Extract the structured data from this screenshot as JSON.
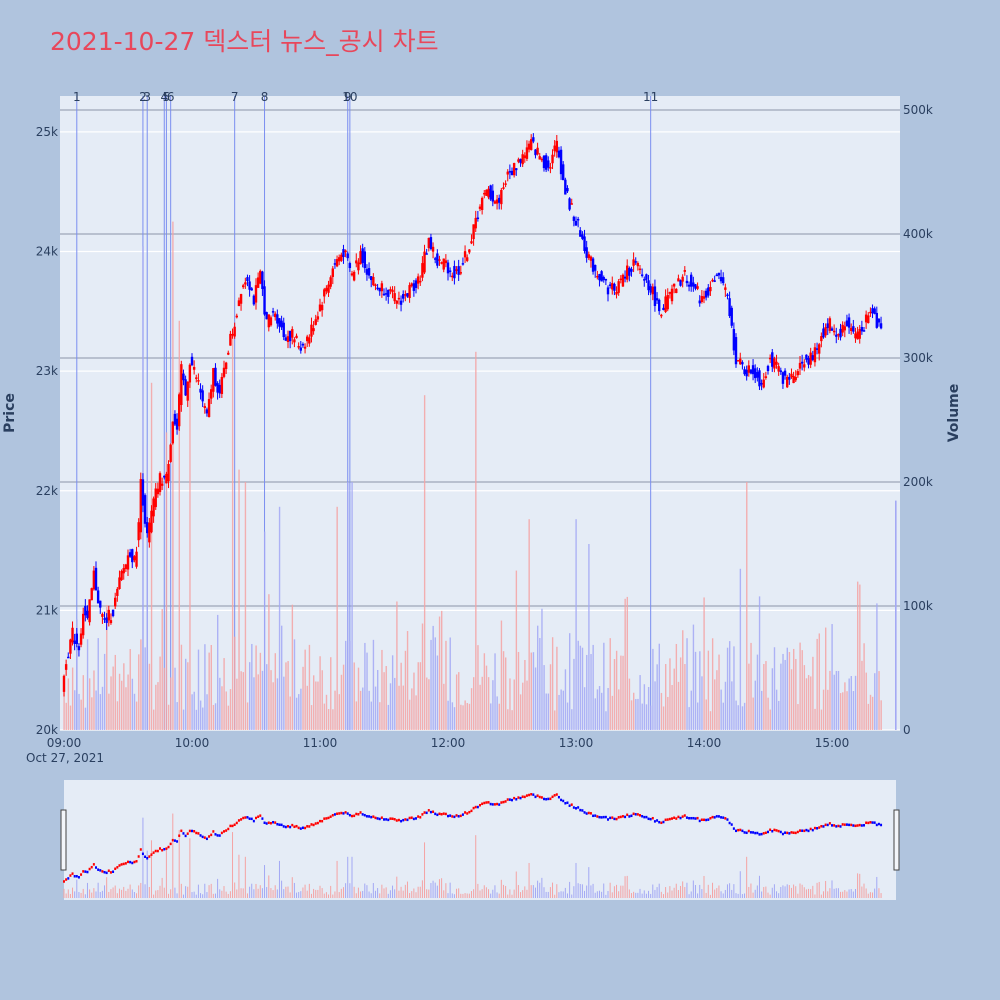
{
  "title": "2021-10-27 덱스터 뉴스_공시 차트",
  "colors": {
    "background": "#b0c4de",
    "plot": "#e5ecf6",
    "up": "#ff0000",
    "down": "#0000ff",
    "title": "#e8475b",
    "newsline": "#7b8ef0"
  },
  "chart_data": {
    "type": "candlestick",
    "date_label": "Oct 27, 2021",
    "xlabel": "",
    "ylabel": "Price",
    "y2label": "Volume",
    "x_range": [
      "09:00",
      "15:30"
    ],
    "ylim": [
      20000,
      25300
    ],
    "y2lim": [
      0,
      500000
    ],
    "x_ticks": [
      "09:00",
      "10:00",
      "11:00",
      "12:00",
      "13:00",
      "14:00",
      "15:00"
    ],
    "y_ticks": [
      20000,
      21000,
      22000,
      23000,
      24000,
      25000
    ],
    "y_tick_labels": [
      "20k",
      "21k",
      "22k",
      "23k",
      "24k",
      "25k"
    ],
    "y2_ticks": [
      0,
      100000,
      200000,
      300000,
      400000,
      500000
    ],
    "y2_tick_labels": [
      "0",
      "100k",
      "200k",
      "300k",
      "400k",
      "500k"
    ],
    "news_markers": [
      {
        "label": "1",
        "time": "09:06"
      },
      {
        "label": "2",
        "time": "09:37"
      },
      {
        "label": "3",
        "time": "09:39"
      },
      {
        "label": "4",
        "time": "09:47"
      },
      {
        "label": "5",
        "time": "09:48"
      },
      {
        "label": "6",
        "time": "09:50"
      },
      {
        "label": "7",
        "time": "10:20"
      },
      {
        "label": "8",
        "time": "10:34"
      },
      {
        "label": "9",
        "time": "11:13"
      },
      {
        "label": "10",
        "time": "11:14"
      },
      {
        "label": "11",
        "time": "13:35"
      }
    ],
    "price_path": [
      [
        "09:00",
        20300
      ],
      [
        "09:02",
        20600
      ],
      [
        "09:05",
        20800
      ],
      [
        "09:08",
        20700
      ],
      [
        "09:10",
        21000
      ],
      [
        "09:12",
        20900
      ],
      [
        "09:15",
        21300
      ],
      [
        "09:18",
        21000
      ],
      [
        "09:20",
        20900
      ],
      [
        "09:24",
        21000
      ],
      [
        "09:28",
        21300
      ],
      [
        "09:32",
        21500
      ],
      [
        "09:34",
        21400
      ],
      [
        "09:36",
        21700
      ],
      [
        "09:37",
        22100
      ],
      [
        "09:40",
        21600
      ],
      [
        "09:43",
        21900
      ],
      [
        "09:46",
        22100
      ],
      [
        "09:49",
        22100
      ],
      [
        "09:52",
        22600
      ],
      [
        "09:54",
        22500
      ],
      [
        "09:56",
        23000
      ],
      [
        "09:58",
        22800
      ],
      [
        "10:00",
        23100
      ],
      [
        "10:04",
        22900
      ],
      [
        "10:08",
        22600
      ],
      [
        "10:11",
        23000
      ],
      [
        "10:14",
        22800
      ],
      [
        "10:18",
        23200
      ],
      [
        "10:21",
        23400
      ],
      [
        "10:24",
        23700
      ],
      [
        "10:27",
        23800
      ],
      [
        "10:30",
        23600
      ],
      [
        "10:33",
        23800
      ],
      [
        "10:36",
        23400
      ],
      [
        "10:40",
        23500
      ],
      [
        "10:44",
        23300
      ],
      [
        "10:48",
        23300
      ],
      [
        "10:52",
        23200
      ],
      [
        "10:56",
        23300
      ],
      [
        "11:00",
        23500
      ],
      [
        "11:04",
        23700
      ],
      [
        "11:08",
        23900
      ],
      [
        "11:12",
        24000
      ],
      [
        "11:16",
        23800
      ],
      [
        "11:20",
        24000
      ],
      [
        "11:24",
        23800
      ],
      [
        "11:28",
        23700
      ],
      [
        "11:32",
        23700
      ],
      [
        "11:36",
        23600
      ],
      [
        "11:40",
        23600
      ],
      [
        "11:44",
        23700
      ],
      [
        "11:48",
        23800
      ],
      [
        "11:52",
        24100
      ],
      [
        "11:56",
        23900
      ],
      [
        "12:00",
        23900
      ],
      [
        "12:04",
        23800
      ],
      [
        "12:08",
        23900
      ],
      [
        "12:12",
        24100
      ],
      [
        "12:16",
        24400
      ],
      [
        "12:20",
        24500
      ],
      [
        "12:24",
        24400
      ],
      [
        "12:28",
        24600
      ],
      [
        "12:32",
        24700
      ],
      [
        "12:36",
        24800
      ],
      [
        "12:40",
        24900
      ],
      [
        "12:44",
        24800
      ],
      [
        "12:48",
        24700
      ],
      [
        "12:52",
        24900
      ],
      [
        "12:56",
        24500
      ],
      [
        "13:00",
        24300
      ],
      [
        "13:04",
        24100
      ],
      [
        "13:08",
        23900
      ],
      [
        "13:12",
        23800
      ],
      [
        "13:16",
        23700
      ],
      [
        "13:20",
        23700
      ],
      [
        "13:24",
        23800
      ],
      [
        "13:28",
        23900
      ],
      [
        "13:32",
        23800
      ],
      [
        "13:36",
        23700
      ],
      [
        "13:40",
        23500
      ],
      [
        "13:44",
        23600
      ],
      [
        "13:48",
        23700
      ],
      [
        "13:52",
        23800
      ],
      [
        "13:56",
        23700
      ],
      [
        "14:00",
        23600
      ],
      [
        "14:04",
        23700
      ],
      [
        "14:08",
        23800
      ],
      [
        "14:12",
        23600
      ],
      [
        "14:16",
        23100
      ],
      [
        "14:20",
        23000
      ],
      [
        "14:24",
        23000
      ],
      [
        "14:28",
        22900
      ],
      [
        "14:32",
        23100
      ],
      [
        "14:36",
        23000
      ],
      [
        "14:40",
        22900
      ],
      [
        "14:44",
        23000
      ],
      [
        "14:48",
        23100
      ],
      [
        "14:52",
        23100
      ],
      [
        "14:56",
        23300
      ],
      [
        "15:00",
        23400
      ],
      [
        "15:04",
        23300
      ],
      [
        "15:08",
        23400
      ],
      [
        "15:12",
        23300
      ],
      [
        "15:16",
        23400
      ],
      [
        "15:20",
        23500
      ],
      [
        "15:22",
        23400
      ]
    ],
    "volume_spikes": [
      [
        "09:37",
        390000
      ],
      [
        "09:39",
        230000
      ],
      [
        "09:41",
        280000
      ],
      [
        "09:48",
        240000
      ],
      [
        "09:51",
        410000
      ],
      [
        "09:54",
        330000
      ],
      [
        "09:59",
        290000
      ],
      [
        "10:19",
        320000
      ],
      [
        "10:22",
        210000
      ],
      [
        "10:25",
        200000
      ],
      [
        "10:34",
        160000
      ],
      [
        "10:41",
        180000
      ],
      [
        "11:08",
        180000
      ],
      [
        "11:13",
        200000
      ],
      [
        "11:15",
        200000
      ],
      [
        "11:49",
        270000
      ],
      [
        "12:13",
        305000
      ],
      [
        "12:38",
        170000
      ],
      [
        "13:00",
        170000
      ],
      [
        "13:06",
        150000
      ],
      [
        "14:17",
        130000
      ],
      [
        "14:20",
        200000
      ],
      [
        "15:30",
        185000
      ]
    ]
  }
}
